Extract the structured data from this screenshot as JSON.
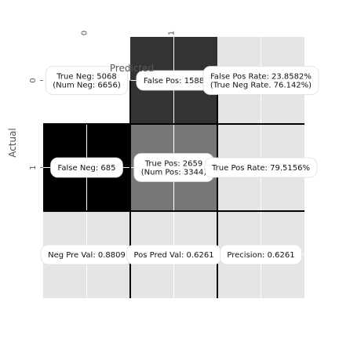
{
  "chart_data": {
    "type": "heatmap",
    "xlabel": "Predicted",
    "ylabel": "Actual",
    "x_tick_labels": [
      "0",
      "1"
    ],
    "y_tick_labels": [
      "0",
      "1"
    ],
    "grid": true,
    "cells": [
      {
        "row": 0,
        "col": 0,
        "value": 5068,
        "lines": [
          "True Neg: 5068",
          "(Num Neg: 6656)"
        ]
      },
      {
        "row": 0,
        "col": 1,
        "value": 1588,
        "lines": [
          "False Pos: 1588"
        ]
      },
      {
        "row": 0,
        "col": 2,
        "value": 23.8582,
        "lines": [
          "False Pos Rate: 23.8582%",
          "(True Neg Rate. 76.142%)"
        ]
      },
      {
        "row": 1,
        "col": 0,
        "value": 685,
        "lines": [
          "False Neg: 685"
        ]
      },
      {
        "row": 1,
        "col": 1,
        "value": 2659,
        "lines": [
          "True Pos: 2659",
          "(Num Pos: 3344)"
        ]
      },
      {
        "row": 1,
        "col": 2,
        "value": 79.5156,
        "lines": [
          "True Pos Rate: 79.5156%"
        ]
      },
      {
        "row": 2,
        "col": 0,
        "value": 0.8809,
        "lines": [
          "Neg Pre Val: 0.8809"
        ]
      },
      {
        "row": 2,
        "col": 1,
        "value": 0.6261,
        "lines": [
          "Pos Pred Val: 0.6261"
        ]
      },
      {
        "row": 2,
        "col": 2,
        "value": 0.6261,
        "lines": [
          "Precision: 0.6261"
        ]
      }
    ],
    "cell_colors": [
      [
        "#ffffff",
        "#333333",
        "#e5e5e5"
      ],
      [
        "#000000",
        "#777777",
        "#e5e5e5"
      ],
      [
        "#e5e5e5",
        "#e5e5e5",
        "#e5e5e5"
      ]
    ]
  }
}
